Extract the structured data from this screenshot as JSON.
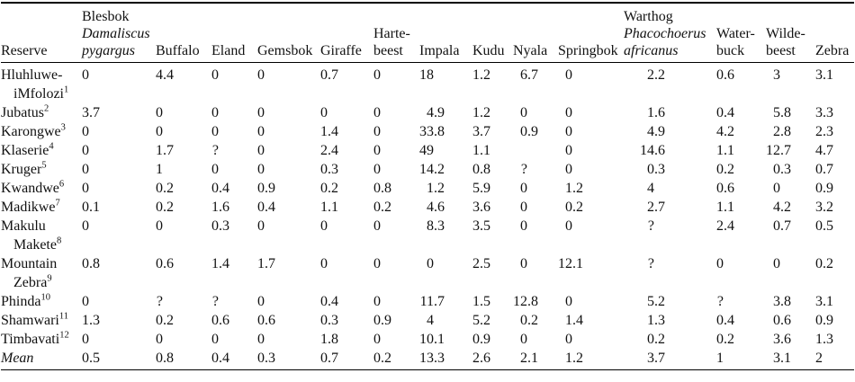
{
  "table": {
    "row_header": "Reserve",
    "mean_label": "Mean",
    "columns": [
      {
        "key": "reserve",
        "label": "Reserve"
      },
      {
        "key": "blesbok",
        "label": "Blesbok",
        "species": "Damaliscus pygargus"
      },
      {
        "key": "buffalo",
        "label": "Buffalo"
      },
      {
        "key": "eland",
        "label": "Eland"
      },
      {
        "key": "gemsbok",
        "label": "Gemsbok"
      },
      {
        "key": "giraffe",
        "label": "Giraffe"
      },
      {
        "key": "hartebeest",
        "label": "Harte-beest"
      },
      {
        "key": "impala",
        "label": "Impala"
      },
      {
        "key": "kudu",
        "label": "Kudu"
      },
      {
        "key": "nyala",
        "label": "Nyala"
      },
      {
        "key": "springbok",
        "label": "Springbok"
      },
      {
        "key": "warthog",
        "label": "Warthog",
        "species": "Phacochoerus africanus"
      },
      {
        "key": "waterbuck",
        "label": "Water-buck"
      },
      {
        "key": "wildebeest",
        "label": "Wilde-beest"
      },
      {
        "key": "zebra",
        "label": "Zebra"
      }
    ],
    "rows": [
      {
        "reserve": "Hluhluwe-iMfolozi",
        "sup": "1",
        "values": [
          "0",
          "4.4",
          "0",
          "0",
          "0.7",
          "0",
          "18",
          "1.2",
          "6.7",
          "0",
          "2.2",
          "0.6",
          "3",
          "3.1"
        ]
      },
      {
        "reserve": "Jubatus",
        "sup": "2",
        "values": [
          "3.7",
          "0",
          "0",
          "0",
          "0",
          "0",
          "4.9",
          "1.2",
          "0",
          "0",
          "1.6",
          "0.4",
          "5.8",
          "3.3"
        ]
      },
      {
        "reserve": "Karongwe",
        "sup": "3",
        "values": [
          "0",
          "0",
          "0",
          "0",
          "1.4",
          "0",
          "33.8",
          "3.7",
          "0.9",
          "0",
          "4.9",
          "4.2",
          "2.8",
          "2.3"
        ]
      },
      {
        "reserve": "Klaserie",
        "sup": "4",
        "values": [
          "0",
          "1.7",
          "?",
          "0",
          "2.4",
          "0",
          "49",
          "1.1",
          "",
          "0",
          "14.6",
          "1.1",
          "12.7",
          "4.7"
        ]
      },
      {
        "reserve": "Kruger",
        "sup": "5",
        "values": [
          "0",
          "1",
          "0",
          "0",
          "0.3",
          "0",
          "14.2",
          "0.8",
          "?",
          "0",
          "0.3",
          "0.2",
          "0.3",
          "0.7"
        ]
      },
      {
        "reserve": "Kwandwe",
        "sup": "6",
        "values": [
          "0",
          "0.2",
          "0.4",
          "0.9",
          "0.2",
          "0.8",
          "1.2",
          "5.9",
          "0",
          "1.2",
          "4",
          "0.6",
          "0",
          "0.9"
        ]
      },
      {
        "reserve": "Madikwe",
        "sup": "7",
        "values": [
          "0.1",
          "0.2",
          "1.6",
          "0.4",
          "1.1",
          "0.2",
          "4.6",
          "3.6",
          "0",
          "0.2",
          "2.7",
          "1.1",
          "4.2",
          "3.2"
        ]
      },
      {
        "reserve": "Makulu Makete",
        "sup": "8",
        "values": [
          "0",
          "0",
          "0.3",
          "0",
          "0",
          "0",
          "8.3",
          "3.5",
          "0",
          "0",
          "?",
          "2.4",
          "0.7",
          "0.5"
        ]
      },
      {
        "reserve": "Mountain Zebra",
        "sup": "9",
        "values": [
          "0.8",
          "0.6",
          "1.4",
          "1.7",
          "0",
          "0",
          "0",
          "2.5",
          "0",
          "12.1",
          "?",
          "0",
          "0",
          "0.2"
        ]
      },
      {
        "reserve": "Phinda",
        "sup": "10",
        "values": [
          "0",
          "?",
          "?",
          "0",
          "0.4",
          "0",
          "11.7",
          "1.5",
          "12.8",
          "0",
          "5.2",
          "?",
          "3.8",
          "3.1"
        ]
      },
      {
        "reserve": "Shamwari",
        "sup": "11",
        "values": [
          "1.3",
          "0.2",
          "0.6",
          "0.6",
          "0.3",
          "0.9",
          "4",
          "5.2",
          "0.2",
          "1.4",
          "1.3",
          "0.4",
          "0.6",
          "0.9"
        ]
      },
      {
        "reserve": "Timbavati",
        "sup": "12",
        "values": [
          "0",
          "0",
          "0",
          "0",
          "1.8",
          "0",
          "10.1",
          "0.9",
          "0",
          "0",
          "0.2",
          "0.2",
          "3.6",
          "1.3"
        ]
      },
      {
        "reserve": "Mean",
        "sup": "",
        "italic": true,
        "values": [
          "0.5",
          "0.8",
          "0.4",
          "0.3",
          "0.7",
          "0.2",
          "13.3",
          "2.6",
          "2.1",
          "1.2",
          "3.7",
          "1",
          "3.1",
          "2"
        ]
      }
    ]
  }
}
